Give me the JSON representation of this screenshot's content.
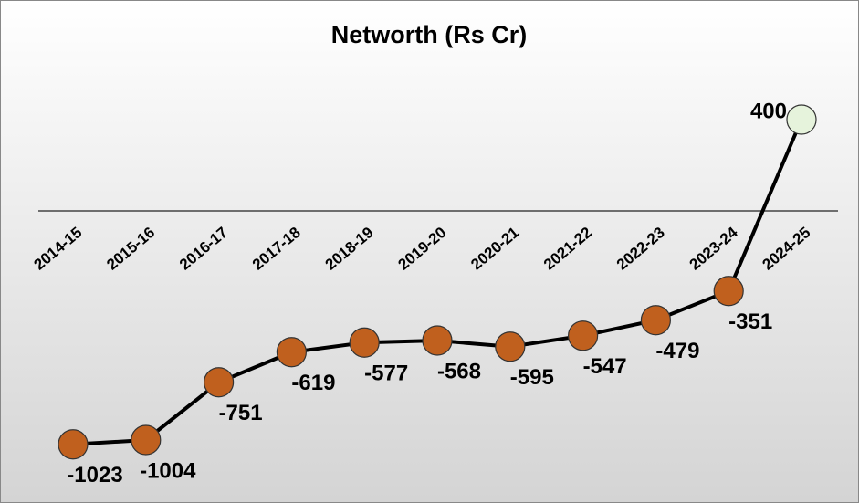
{
  "chart_data": {
    "type": "line",
    "title": "Networth (Rs Cr)",
    "categories": [
      "2014-15",
      "2015-16",
      "2016-17",
      "2017-18",
      "2018-19",
      "2019-20",
      "2020-21",
      "2021-22",
      "2022-23",
      "2023-24",
      "2024-25"
    ],
    "series": [
      {
        "name": "Networth",
        "color": "#000000",
        "values": [
          -1023,
          -1004,
          -751,
          -619,
          -577,
          -568,
          -595,
          -547,
          -479,
          -351,
          400
        ],
        "marker_colors": [
          "#c0601e",
          "#c0601e",
          "#c0601e",
          "#c0601e",
          "#c0601e",
          "#c0601e",
          "#c0601e",
          "#c0601e",
          "#c0601e",
          "#c0601e",
          "#e6f3dc"
        ]
      }
    ],
    "ylim": [
      -1200,
      600
    ]
  }
}
